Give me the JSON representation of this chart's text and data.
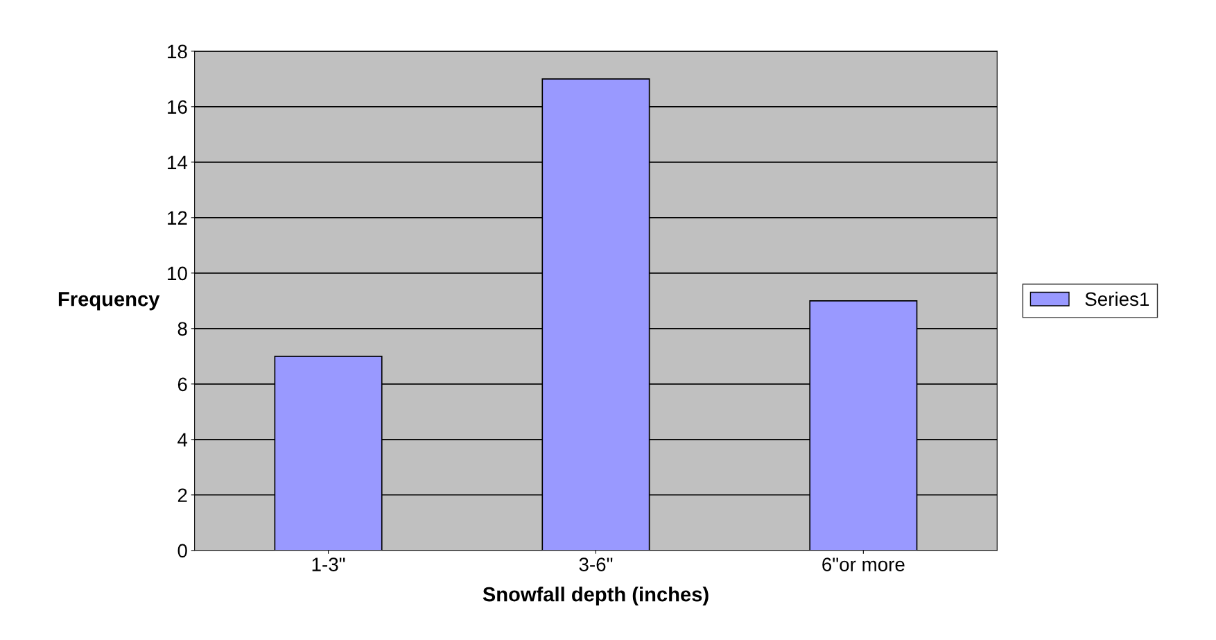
{
  "chart_data": {
    "type": "bar",
    "xlabel": "Snowfall depth (inches)",
    "ylabel": "Frequency",
    "categories": [
      "1-3\"",
      "3-6\"",
      "6\"or more"
    ],
    "series": [
      {
        "name": "Series1",
        "color": "#9999ff",
        "values": [
          7,
          17,
          9
        ]
      }
    ],
    "ylim": [
      0,
      18
    ],
    "yticks": [
      0,
      2,
      4,
      6,
      8,
      10,
      12,
      14,
      16,
      18
    ],
    "grid": "y",
    "legend": "right"
  }
}
